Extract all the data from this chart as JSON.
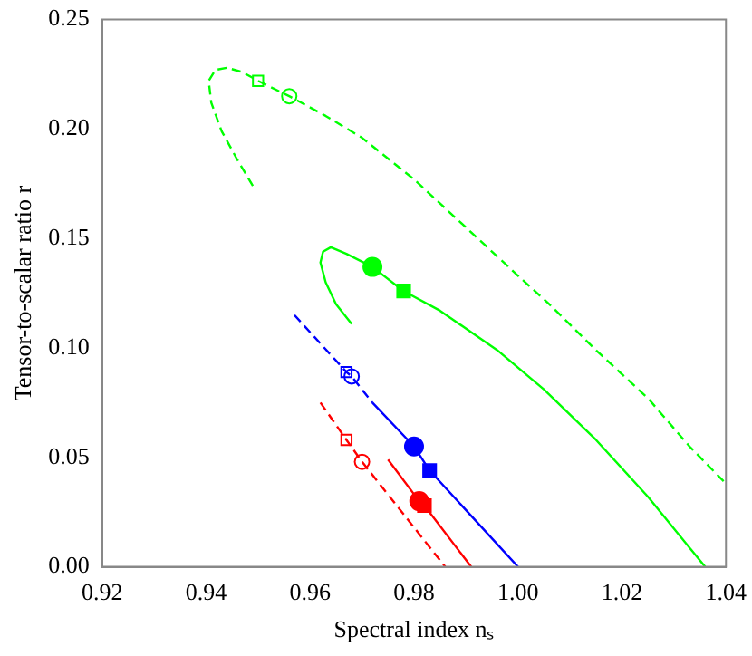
{
  "chart_data": {
    "type": "line",
    "xlabel": "Spectral index nₛ",
    "ylabel": "Tensor-to-scalar ratio r",
    "xlim": [
      0.92,
      1.04
    ],
    "ylim": [
      0,
      0.25
    ],
    "xticks": [
      0.92,
      0.94,
      0.96,
      0.98,
      {
        "value": 1,
        "label": "1.00"
      },
      1.02,
      1.04
    ],
    "yticks": [
      {
        "value": 0,
        "label": "0.00"
      },
      0.05,
      {
        "value": 0.1,
        "label": "0.10"
      },
      0.15,
      {
        "value": 0.2,
        "label": "0.20"
      },
      0.25
    ],
    "grid": false,
    "series": [
      {
        "color": "#00ff00",
        "line_style": "dashed",
        "x": [
          0.949,
          0.946,
          0.943,
          0.941,
          0.9405,
          0.9418,
          0.944,
          0.947,
          0.95,
          0.956,
          0.963,
          0.97,
          0.98,
          0.99,
          1.0,
          1.006,
          1.015,
          1.025,
          1.033,
          1.04
        ],
        "values": [
          0.174,
          0.186,
          0.199,
          0.212,
          0.222,
          0.227,
          0.228,
          0.226,
          0.222,
          0.215,
          0.206,
          0.196,
          0.177,
          0.155,
          0.133,
          0.12,
          0.099,
          0.077,
          0.055,
          0.038
        ]
      },
      {
        "color": "#00ff00",
        "line_style": "solid",
        "x": [
          0.968,
          0.965,
          0.963,
          0.962,
          0.9625,
          0.964,
          0.967,
          0.972,
          0.978,
          0.985,
          0.996,
          1.005,
          1.015,
          1.025,
          1.036
        ],
        "values": [
          0.111,
          0.12,
          0.13,
          0.139,
          0.144,
          0.146,
          0.143,
          0.137,
          0.126,
          0.117,
          0.099,
          0.081,
          0.058,
          0.032,
          0
        ]
      },
      {
        "color": "#0000ff",
        "line_style": "dashed",
        "x": [
          0.957,
          0.967,
          0.968,
          0.972
        ],
        "values": [
          0.115,
          0.089,
          0.087,
          0.075
        ]
      },
      {
        "color": "#0000ff",
        "line_style": "solid",
        "x": [
          0.972,
          0.98,
          0.983,
          1.0
        ],
        "values": [
          0.075,
          0.055,
          0.044,
          0
        ]
      },
      {
        "color": "#ff0000",
        "line_style": "dashed",
        "x": [
          0.962,
          0.967,
          0.97,
          0.986
        ],
        "values": [
          0.075,
          0.058,
          0.048,
          0
        ]
      },
      {
        "color": "#ff0000",
        "line_style": "solid",
        "x": [
          0.975,
          0.981,
          0.982,
          0.991
        ],
        "values": [
          0.049,
          0.03,
          0.028,
          0
        ]
      },
      {
        "type": "scatter",
        "color": "#00ff00",
        "marker": "square",
        "line_style": "dashed",
        "x": [
          0.95
        ],
        "values": [
          0.222
        ]
      },
      {
        "type": "scatter",
        "color": "#00ff00",
        "marker": "circle",
        "line_style": "dashed",
        "x": [
          0.956
        ],
        "values": [
          0.215
        ]
      },
      {
        "type": "scatter",
        "color": "#00ff00",
        "marker": "circle",
        "x": [
          0.972
        ],
        "values": [
          0.137
        ]
      },
      {
        "type": "scatter",
        "color": "#00ff00",
        "marker": "square",
        "x": [
          0.978
        ],
        "values": [
          0.126
        ]
      },
      {
        "type": "scatter",
        "color": "#0000ff",
        "marker": "square",
        "line_style": "dashed",
        "x": [
          0.967
        ],
        "values": [
          0.089
        ]
      },
      {
        "type": "scatter",
        "color": "#0000ff",
        "marker": "circle",
        "line_style": "dashed",
        "x": [
          0.968
        ],
        "values": [
          0.087
        ]
      },
      {
        "type": "scatter",
        "color": "#0000ff",
        "marker": "circle",
        "x": [
          0.98
        ],
        "values": [
          0.055
        ]
      },
      {
        "type": "scatter",
        "color": "#0000ff",
        "marker": "square",
        "x": [
          0.983
        ],
        "values": [
          0.044
        ]
      },
      {
        "type": "scatter",
        "color": "#ff0000",
        "marker": "square",
        "line_style": "dashed",
        "x": [
          0.967
        ],
        "values": [
          0.058
        ]
      },
      {
        "type": "scatter",
        "color": "#ff0000",
        "marker": "circle",
        "line_style": "dashed",
        "x": [
          0.97
        ],
        "values": [
          0.048
        ]
      },
      {
        "type": "scatter",
        "color": "#ff0000",
        "marker": "circle",
        "x": [
          0.981
        ],
        "values": [
          0.03
        ]
      },
      {
        "type": "scatter",
        "color": "#ff0000",
        "marker": "square",
        "x": [
          0.982
        ],
        "values": [
          0.028
        ]
      }
    ]
  }
}
